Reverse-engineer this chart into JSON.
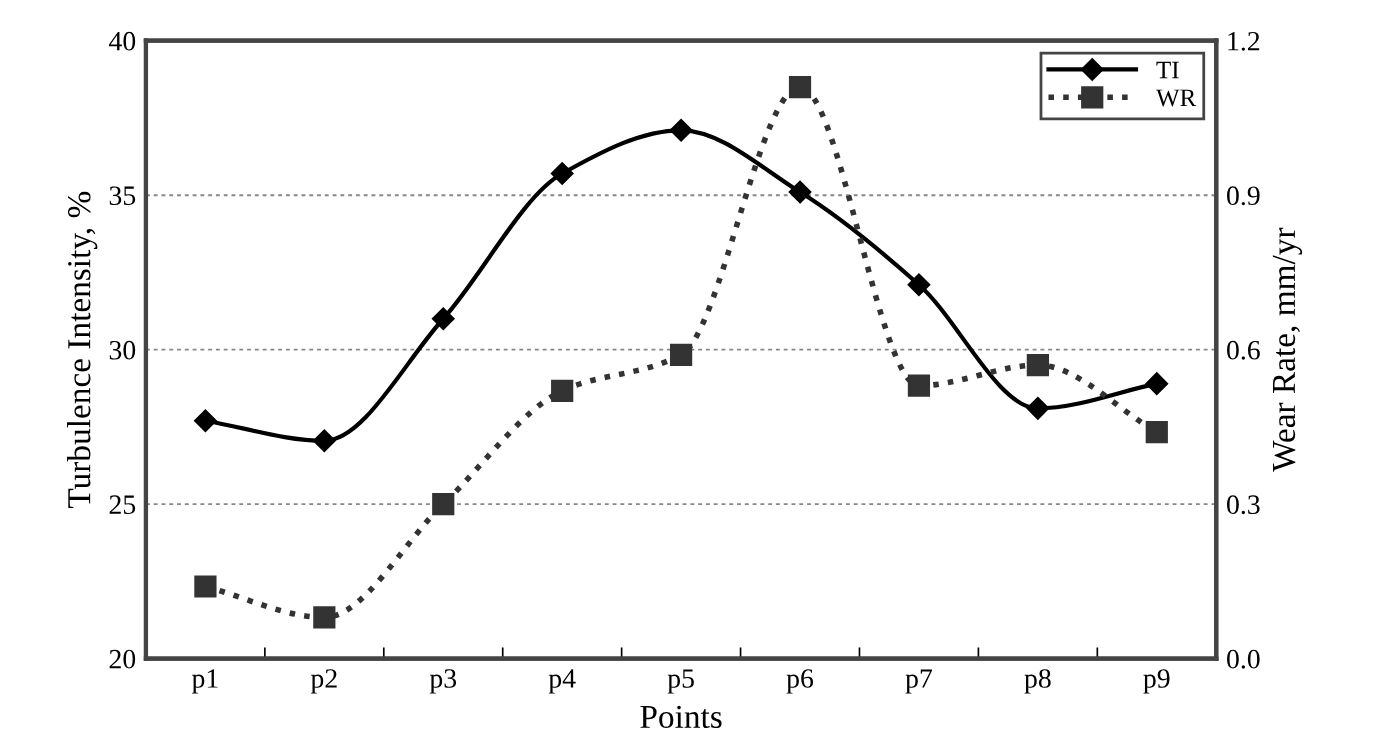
{
  "chart_data": {
    "type": "line",
    "xlabel": "Points",
    "ylabel": "Turbulence Intensity, %",
    "y2label": "Wear Rate, mm/yr",
    "categories": [
      "p1",
      "p2",
      "p3",
      "p4",
      "p5",
      "p6",
      "p7",
      "p8",
      "p9"
    ],
    "series": [
      {
        "name": "TI",
        "color": "#000000",
        "marker": "diamond",
        "line_style": "solid",
        "values": [
          27.7,
          27.05,
          31.0,
          35.7,
          37.1,
          35.1,
          32.1,
          28.1,
          28.9
        ]
      },
      {
        "name": "WR",
        "color": "#333333",
        "marker": "square",
        "line_style": "dotted",
        "axis": "y2",
        "values": [
          0.14,
          0.08,
          0.3,
          0.52,
          0.59,
          1.11,
          0.53,
          0.57,
          0.44
        ]
      }
    ],
    "ylim": [
      20,
      40
    ],
    "yticks": [
      20,
      25,
      30,
      35,
      40
    ],
    "y2lim": [
      0.0,
      1.2
    ],
    "y2ticks": [
      {
        "value": 0,
        "label": "0.0"
      },
      0.3,
      0.6,
      0.9,
      1.2
    ],
    "grid": "y",
    "legend": "top right"
  }
}
